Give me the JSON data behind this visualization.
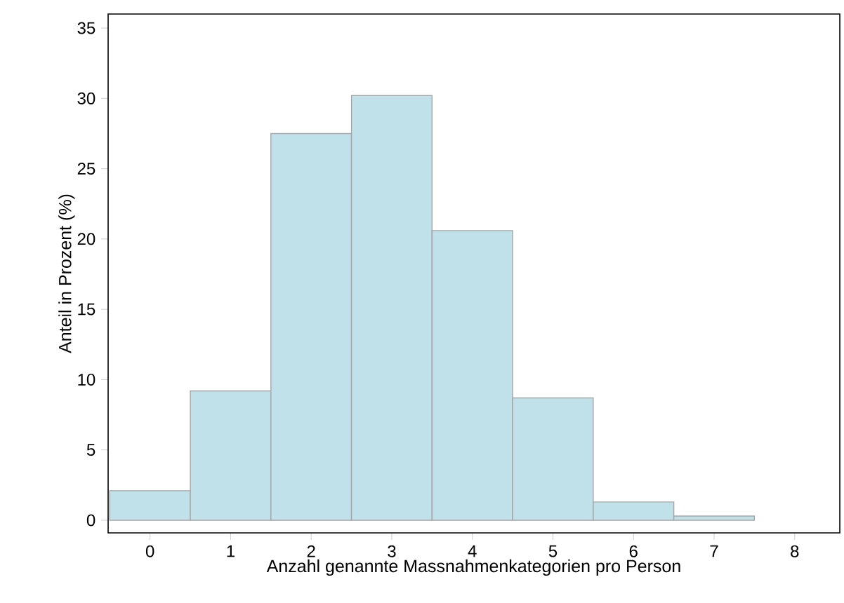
{
  "chart_data": {
    "type": "histogram",
    "xlabel": "Anzahl genannte Massnahmenkategorien pro Person",
    "ylabel": "Anteil in Prozent (%)",
    "bins": [
      -0.5,
      0.5,
      1.5,
      2.5,
      3.5,
      4.5,
      5.5,
      6.5,
      7.5
    ],
    "values": [
      2.1,
      9.2,
      27.5,
      30.2,
      20.6,
      8.7,
      1.3,
      0.3
    ],
    "color": "#c0e0ea",
    "xlim": [
      -0.52,
      8.56
    ],
    "ylim": [
      -0.9,
      36
    ],
    "xticks": [
      0,
      1,
      2,
      3,
      4,
      5,
      6,
      7,
      8
    ],
    "yticks": [
      0,
      5,
      10,
      15,
      20,
      25,
      30,
      35
    ],
    "grid": false
  }
}
